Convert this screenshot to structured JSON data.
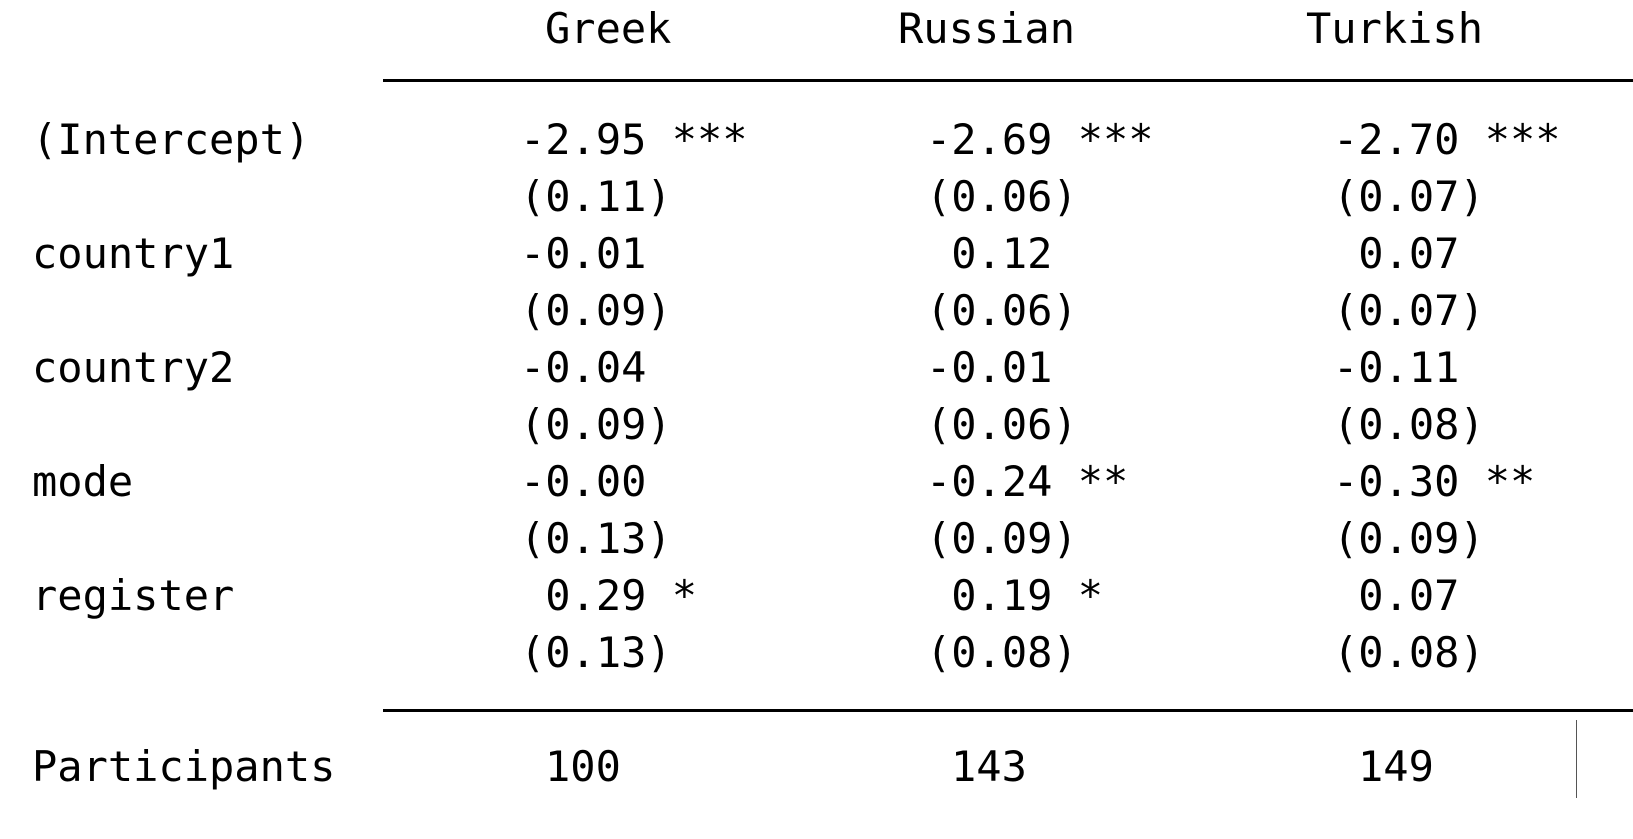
{
  "table": {
    "headers": [
      "Greek",
      "Russian",
      "Turkish"
    ],
    "rows": [
      {
        "label": "(Intercept)",
        "estimates": [
          "-2.95 ***",
          "-2.69 ***",
          "-2.70 ***"
        ],
        "std_errors": [
          "(0.11)",
          "(0.06)",
          "(0.07)"
        ]
      },
      {
        "label": "country1",
        "estimates": [
          "-0.01",
          " 0.12",
          " 0.07"
        ],
        "std_errors": [
          "(0.09)",
          "(0.06)",
          "(0.07)"
        ]
      },
      {
        "label": "country2",
        "estimates": [
          "-0.04",
          "-0.01",
          "-0.11"
        ],
        "std_errors": [
          "(0.09)",
          "(0.06)",
          "(0.08)"
        ]
      },
      {
        "label": "mode",
        "estimates": [
          "-0.00",
          "-0.24 **",
          "-0.30 **"
        ],
        "std_errors": [
          "(0.13)",
          "(0.09)",
          "(0.09)"
        ]
      },
      {
        "label": "register",
        "estimates": [
          " 0.29 *",
          " 0.19 *",
          " 0.07"
        ],
        "std_errors": [
          "(0.13)",
          "(0.08)",
          "(0.08)"
        ]
      }
    ],
    "footer": {
      "label": "Participants",
      "values": [
        "100",
        "143",
        "149"
      ]
    }
  }
}
